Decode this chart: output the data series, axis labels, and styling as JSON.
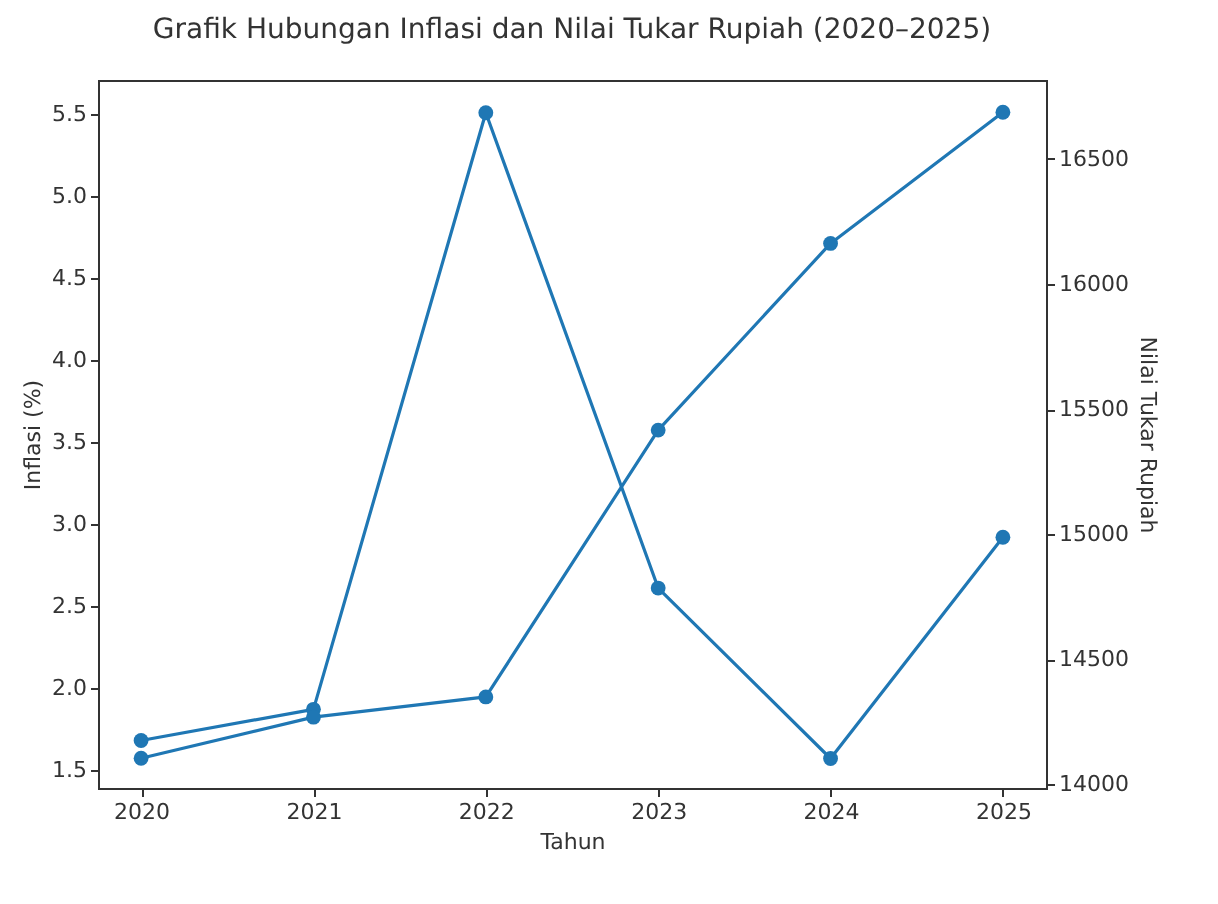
{
  "chart_data": {
    "type": "line",
    "title": "Grafik Hubungan Inflasi dan Nilai Tukar Rupiah (2020–2025)",
    "xlabel": "Tahun",
    "ylabel": "Inflasi (%)",
    "y2label": "Nilai Tukar Rupiah",
    "x": [
      2020,
      2021,
      2022,
      2023,
      2024,
      2025
    ],
    "series": [
      {
        "color": "#1f77b4",
        "values": [
          1.68,
          1.87,
          5.51,
          2.61,
          1.57,
          2.92
        ]
      },
      {
        "color": "#1f77b4",
        "axis": "y2",
        "values": [
          14105,
          14269,
          14350,
          15416,
          16162,
          16686
        ]
      }
    ],
    "xlim": [
      2019.75,
      2025.25
    ],
    "xticks": [
      2020,
      2021,
      2022,
      2023,
      2024,
      2025
    ],
    "ylim": [
      1.39,
      5.71
    ],
    "yticks": [
      1.5,
      {
        "value": 2,
        "label": "2.0"
      },
      2.5,
      {
        "value": 3,
        "label": "3.0"
      },
      3.5,
      {
        "value": 4,
        "label": "4.0"
      },
      4.5,
      {
        "value": 5,
        "label": "5.0"
      },
      5.5
    ],
    "y2lim": [
      13986,
      16815
    ],
    "y2ticks": [
      14000,
      14500,
      15000,
      15500,
      16000,
      16500
    ],
    "marker": "circle",
    "line_style": "solid",
    "grid": false,
    "legend": false
  }
}
